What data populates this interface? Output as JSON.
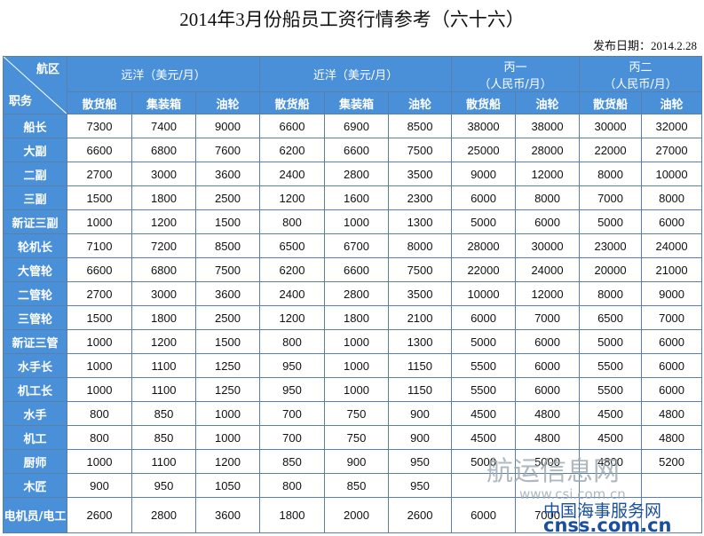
{
  "title": "2014年3月份船员工资行情参考（六十六）",
  "date": "发布日期：2014.2.28",
  "table": {
    "corner": {
      "top": "航区",
      "bottom": "职务"
    },
    "groups": [
      {
        "label": "远洋（美元/月）",
        "columns": [
          "散货船",
          "集装箱",
          "油轮"
        ]
      },
      {
        "label": "近洋（美元/月）",
        "columns": [
          "散货船",
          "集装箱",
          "油轮"
        ]
      },
      {
        "label": "丙一",
        "sublabel": "（人民币/月）",
        "columns": [
          "散货船",
          "油轮"
        ]
      },
      {
        "label": "丙二",
        "sublabel": "（人民币/月）",
        "columns": [
          "散货船",
          "油轮"
        ]
      }
    ],
    "rows": [
      {
        "role": "船长",
        "values": [
          7300,
          7400,
          9000,
          6600,
          6900,
          8500,
          38000,
          38000,
          30000,
          32000
        ]
      },
      {
        "role": "大副",
        "values": [
          6600,
          6800,
          7600,
          6200,
          6600,
          7500,
          25000,
          28000,
          22000,
          27000
        ]
      },
      {
        "role": "二副",
        "values": [
          2700,
          3000,
          3600,
          2400,
          2800,
          3500,
          9000,
          12000,
          8000,
          10000
        ]
      },
      {
        "role": "三副",
        "values": [
          1500,
          1800,
          2500,
          1200,
          1600,
          2300,
          6000,
          8000,
          7000,
          8000
        ]
      },
      {
        "role": "新证三副",
        "values": [
          1000,
          1200,
          1500,
          800,
          1000,
          1300,
          5000,
          6000,
          5000,
          6000
        ]
      },
      {
        "role": "轮机长",
        "values": [
          7100,
          7200,
          8500,
          6500,
          6700,
          8000,
          28000,
          30000,
          23000,
          24000
        ]
      },
      {
        "role": "大管轮",
        "values": [
          6600,
          6800,
          7500,
          6200,
          6600,
          7500,
          22000,
          24000,
          20000,
          21000
        ]
      },
      {
        "role": "二管轮",
        "values": [
          2700,
          3000,
          3600,
          2400,
          2800,
          3500,
          10000,
          12000,
          8000,
          9000
        ]
      },
      {
        "role": "三管轮",
        "values": [
          1500,
          1800,
          2500,
          1200,
          1800,
          2100,
          6000,
          7000,
          6500,
          7000
        ]
      },
      {
        "role": "新证三管",
        "values": [
          1000,
          1200,
          1500,
          800,
          1000,
          1300,
          5000,
          6000,
          5000,
          6000
        ]
      },
      {
        "role": "水手长",
        "values": [
          1000,
          1100,
          1250,
          950,
          1000,
          1150,
          5500,
          6000,
          5500,
          6000
        ]
      },
      {
        "role": "机工长",
        "values": [
          1000,
          1100,
          1250,
          950,
          1000,
          1150,
          5500,
          6000,
          5500,
          6000
        ]
      },
      {
        "role": "水手",
        "values": [
          800,
          850,
          1000,
          700,
          750,
          900,
          4500,
          4800,
          4500,
          4800
        ]
      },
      {
        "role": "机工",
        "values": [
          800,
          850,
          1000,
          700,
          750,
          900,
          4500,
          4800,
          4500,
          4800
        ]
      },
      {
        "role": "厨师",
        "values": [
          1000,
          1100,
          1200,
          850,
          900,
          950,
          5000,
          5000,
          4800,
          5200
        ]
      },
      {
        "role": "木匠",
        "values": [
          900,
          950,
          1050,
          800,
          850,
          950
        ]
      },
      {
        "role": "电机员/电工",
        "values": [
          2600,
          2800,
          3600,
          1800,
          2000,
          2600,
          6000,
          7000
        ]
      }
    ]
  },
  "watermarks": [
    "航运信息网",
    "www.csi.com.cn",
    "中国海事服务网",
    "cnss.com.cn"
  ]
}
